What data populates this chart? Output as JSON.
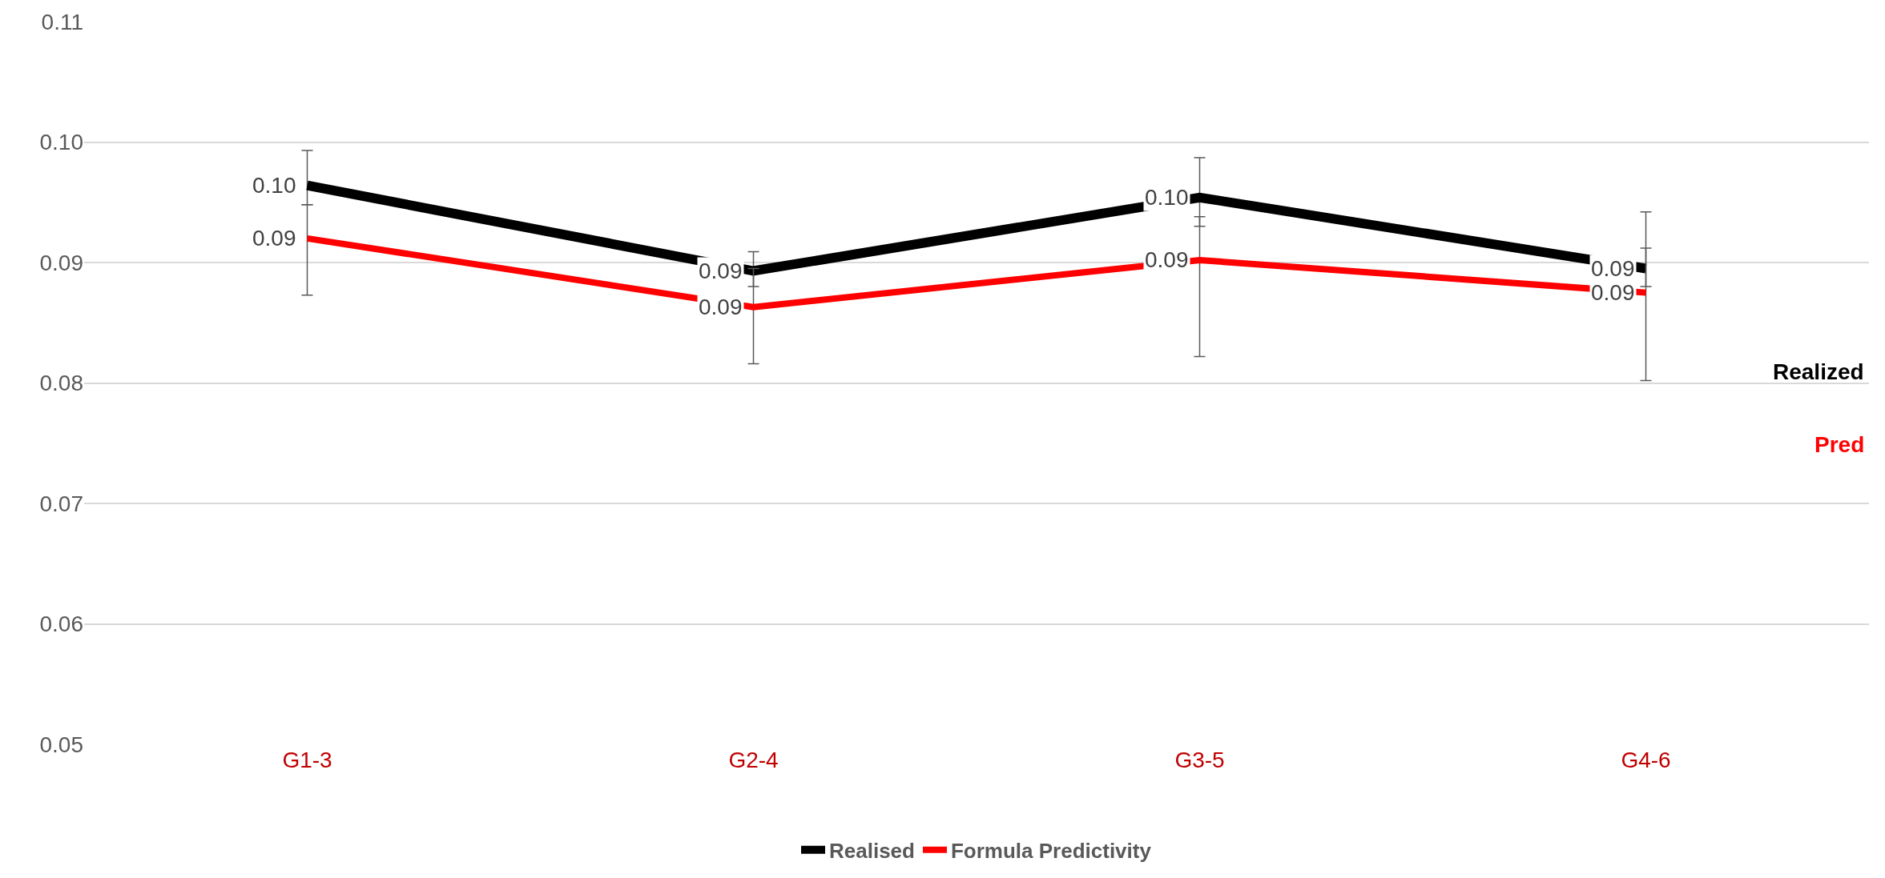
{
  "chart_data": {
    "type": "line",
    "categories": [
      "G1-3",
      "G2-4",
      "G3-5",
      "G4-6"
    ],
    "series": [
      {
        "name": "Realised",
        "color": "#000000",
        "values": [
          0.0964,
          0.0893,
          0.0954,
          0.0895
        ],
        "value_labels": [
          "0.10",
          "0.09",
          "0.10",
          "0.09"
        ],
        "errors": [
          [
            0.0948,
            0.0993
          ],
          [
            0.088,
            0.0909
          ],
          [
            0.093,
            0.0987
          ],
          [
            0.088,
            0.0942
          ]
        ]
      },
      {
        "name": "Formula Predictivity",
        "color": "#ff0000",
        "values": [
          0.092,
          0.0863,
          0.0902,
          0.0875
        ],
        "value_labels": [
          "0.09",
          "0.09",
          "0.09",
          "0.09"
        ],
        "errors": [
          [
            0.0873,
            0.0948
          ],
          [
            0.0816,
            0.0895
          ],
          [
            0.0822,
            0.0938
          ],
          [
            0.0802,
            0.0912
          ]
        ]
      }
    ],
    "annotations": [
      "Realized",
      "Pred"
    ],
    "ylim": [
      0.05,
      0.11
    ],
    "yticks": [
      {
        "value": 0.05,
        "label": "0.05"
      },
      {
        "value": 0.06,
        "label": "0.06"
      },
      {
        "value": 0.07,
        "label": "0.07"
      },
      {
        "value": 0.08,
        "label": "0.08"
      },
      {
        "value": 0.09,
        "label": "0.09"
      },
      {
        "value": 0.1,
        "label": "0.10"
      },
      {
        "value": 0.11,
        "label": "0.11"
      }
    ],
    "grid": "y",
    "legend": "bottom",
    "marker": "none",
    "line_style": "solid"
  }
}
